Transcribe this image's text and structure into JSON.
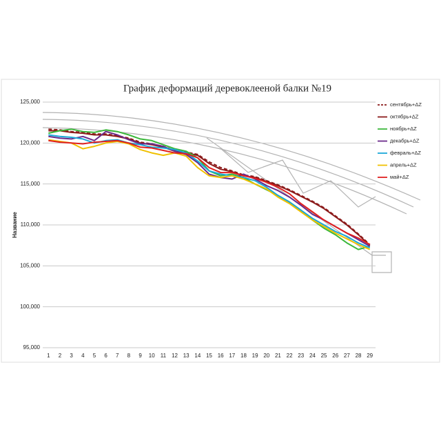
{
  "chart_data": {
    "type": "line",
    "title": "График деформаций деревоклееной балки №19",
    "y_label": "Название",
    "categories": [
      "1",
      "2",
      "3",
      "4",
      "5",
      "6",
      "7",
      "8",
      "9",
      "10",
      "11",
      "12",
      "13",
      "14",
      "15",
      "16",
      "17",
      "18",
      "19",
      "20",
      "21",
      "22",
      "23",
      "24",
      "25",
      "26",
      "27",
      "28",
      "29"
    ],
    "ylim": [
      95000,
      125000
    ],
    "yticks": [
      {
        "value": 95000,
        "label": "95,000"
      },
      {
        "value": 100000,
        "label": "100,000"
      },
      {
        "value": 105000,
        "label": "105,000"
      },
      {
        "value": 110000,
        "label": "110,000"
      },
      {
        "value": 115000,
        "label": "115,000"
      },
      {
        "value": 120000,
        "label": "120,000"
      },
      {
        "value": 125000,
        "label": "125,000"
      }
    ],
    "grid": true,
    "legend": "right",
    "series": [
      {
        "name": "сентябрь+ΔZ",
        "color": "#8b1a1a",
        "line_style": "dashed",
        "values": [
          121700,
          121600,
          121400,
          121300,
          121100,
          121100,
          120900,
          120600,
          120100,
          119900,
          119600,
          119100,
          118900,
          118600,
          117700,
          117000,
          116600,
          116100,
          115900,
          115400,
          114900,
          114300,
          113600,
          112900,
          112100,
          111100,
          110100,
          108900,
          107600
        ]
      },
      {
        "name": "октябрь+ΔZ",
        "color": "#8b1a1a",
        "values": [
          121500,
          121500,
          121300,
          121200,
          121000,
          121000,
          120800,
          120500,
          120000,
          119800,
          119500,
          119000,
          118800,
          118500,
          117500,
          116800,
          116500,
          116000,
          115800,
          115300,
          114800,
          114200,
          113500,
          112800,
          112000,
          111000,
          110000,
          108800,
          107500
        ]
      },
      {
        "name": "ноябрь+ΔZ",
        "color": "#3cb83c",
        "values": [
          121200,
          121500,
          121700,
          121400,
          121300,
          121600,
          121400,
          121000,
          120500,
          120300,
          119800,
          119300,
          119000,
          118200,
          116600,
          116000,
          116200,
          115800,
          115000,
          114300,
          113600,
          112800,
          111800,
          110600,
          109600,
          108800,
          107800,
          107000,
          107400
        ]
      },
      {
        "name": "декабрь+ΔZ",
        "color": "#6a2a8a",
        "values": [
          120800,
          120600,
          120500,
          120800,
          120300,
          121400,
          121000,
          120400,
          119900,
          119900,
          119600,
          119000,
          118600,
          117600,
          116200,
          115800,
          115600,
          116200,
          115600,
          114800,
          114200,
          113400,
          112400,
          111300,
          110600,
          109800,
          109000,
          108200,
          107400
        ]
      },
      {
        "name": "февраль+ΔZ",
        "color": "#1aa8d8",
        "values": [
          121000,
          120800,
          120700,
          120500,
          120000,
          120300,
          120400,
          120000,
          119800,
          119500,
          119400,
          119200,
          118800,
          117800,
          116600,
          116200,
          116000,
          115800,
          115400,
          114600,
          113600,
          112800,
          111800,
          110800,
          110000,
          109200,
          108600,
          107800,
          107200
        ]
      },
      {
        "name": "апрель+ΔZ",
        "color": "#f0c000",
        "values": [
          120400,
          120200,
          120000,
          119300,
          119600,
          120000,
          120200,
          119900,
          119200,
          118800,
          118500,
          118800,
          118400,
          117000,
          116000,
          115800,
          116000,
          115600,
          115000,
          114400,
          113400,
          112600,
          111600,
          110600,
          109800,
          109000,
          108300,
          107600,
          107000
        ]
      },
      {
        "name": "май+ΔZ",
        "color": "#e02020",
        "values": [
          120300,
          120100,
          120000,
          119900,
          120100,
          120200,
          120300,
          120000,
          119500,
          119400,
          119100,
          118800,
          118700,
          118200,
          117000,
          116400,
          116400,
          116000,
          115700,
          115200,
          114600,
          113800,
          112600,
          111600,
          110600,
          109800,
          109000,
          108400,
          107600
        ]
      }
    ]
  }
}
